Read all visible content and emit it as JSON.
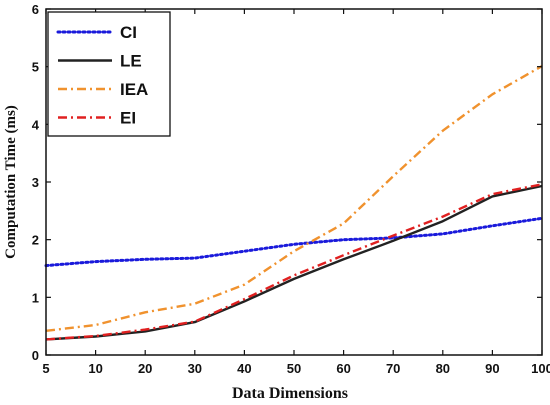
{
  "chart_data": {
    "type": "line",
    "title": "",
    "xlabel": "Data Dimensions",
    "ylabel": "Computation Time (ms)",
    "x": [
      5,
      10,
      20,
      30,
      40,
      50,
      60,
      70,
      80,
      90,
      100
    ],
    "x_tick_labels": [
      "5",
      "10",
      "20",
      "30",
      "40",
      "50",
      "60",
      "70",
      "80",
      "90",
      "100"
    ],
    "y_tick_labels": [
      "0",
      "1",
      "2",
      "3",
      "4",
      "5",
      "6"
    ],
    "ylim": [
      0,
      6
    ],
    "grid": false,
    "legend_position": "top-left",
    "series": [
      {
        "name": "CI",
        "color": "#1a1adb",
        "style": "dotted",
        "values": [
          1.55,
          1.62,
          1.66,
          1.68,
          1.8,
          1.92,
          2.0,
          2.03,
          2.1,
          2.24,
          2.37
        ]
      },
      {
        "name": "LE",
        "color": "#222222",
        "style": "solid",
        "values": [
          0.27,
          0.32,
          0.41,
          0.57,
          0.93,
          1.32,
          1.66,
          1.98,
          2.32,
          2.75,
          2.93
        ]
      },
      {
        "name": "IEA",
        "color": "#f0922e",
        "style": "dash-dot",
        "values": [
          0.42,
          0.52,
          0.74,
          0.89,
          1.22,
          1.8,
          2.28,
          3.1,
          3.89,
          4.52,
          5.01
        ]
      },
      {
        "name": "EI",
        "color": "#e02020",
        "style": "dash-dot",
        "values": [
          0.27,
          0.33,
          0.44,
          0.58,
          0.97,
          1.38,
          1.73,
          2.07,
          2.4,
          2.79,
          2.96
        ]
      }
    ]
  }
}
